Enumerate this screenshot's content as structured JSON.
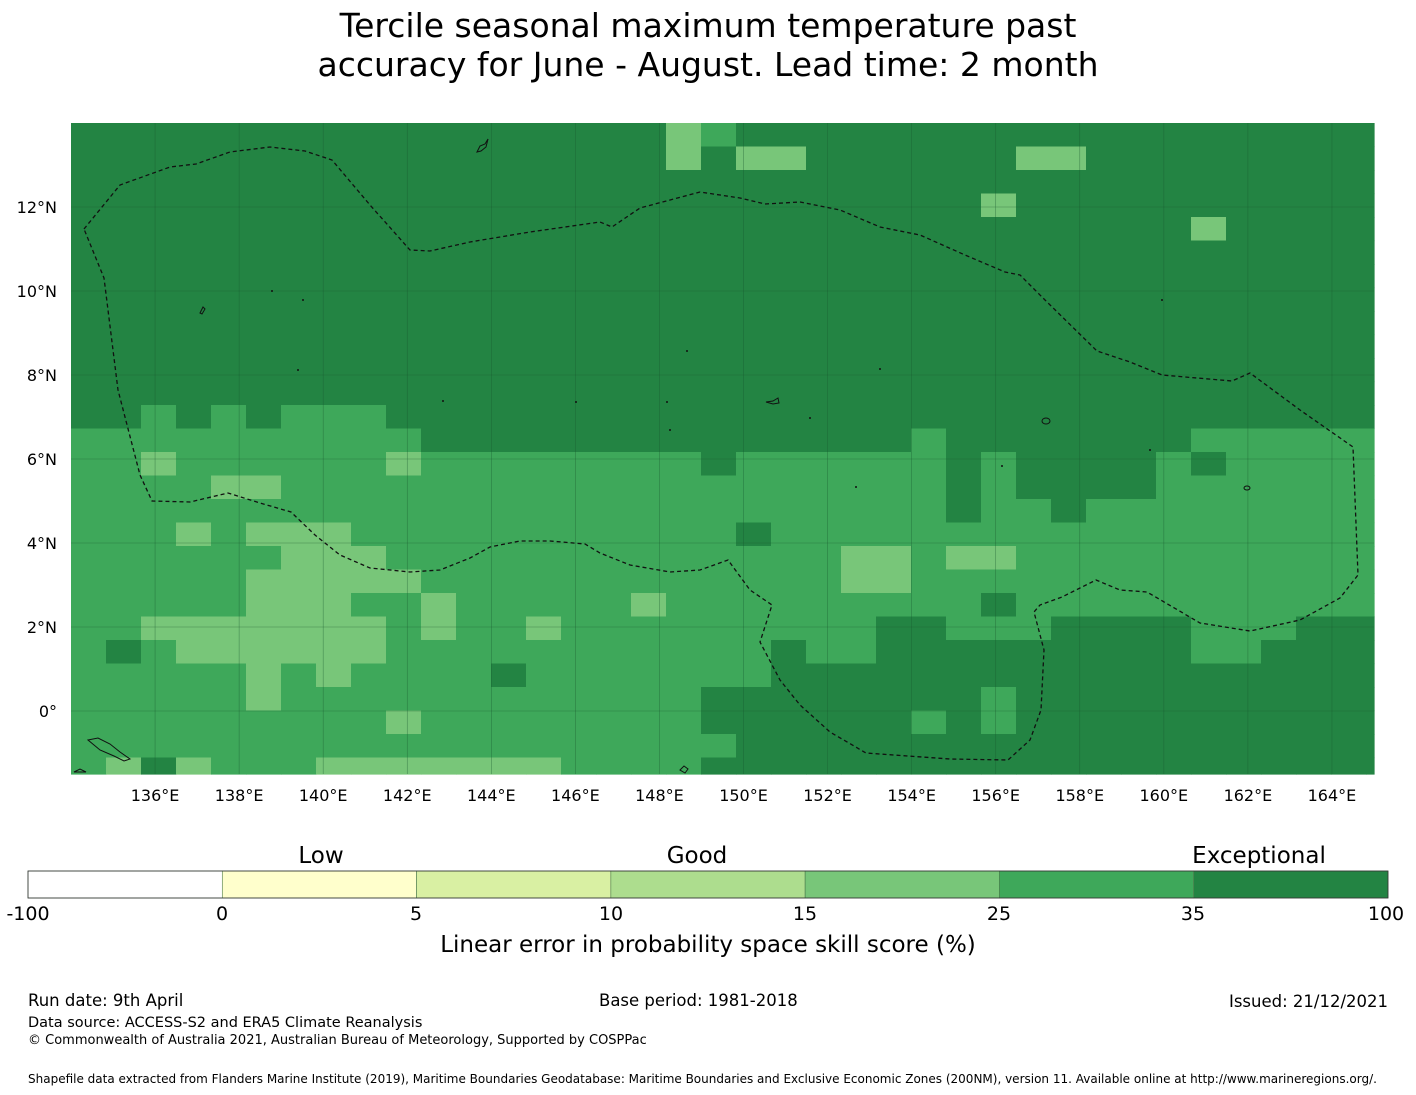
{
  "title": {
    "line1": "Tercile seasonal maximum temperature past",
    "line2": "accuracy for June - August. Lead time: 2 month"
  },
  "map": {
    "lat_labels": [
      "12°N",
      "10°N",
      "8°N",
      "6°N",
      "4°N",
      "2°N",
      "0°"
    ],
    "lon_labels": [
      "136°E",
      "138°E",
      "140°E",
      "142°E",
      "144°E",
      "146°E",
      "148°E",
      "150°E",
      "152°E",
      "154°E",
      "156°E",
      "158°E",
      "160°E",
      "162°E",
      "164°E"
    ],
    "extent": {
      "lon_min": 134.0,
      "lon_max": 165.0,
      "lat_min": -1.5,
      "lat_max": 14.0
    },
    "grid_spacing_degrees": 2,
    "cell_size_degrees": 0.8333,
    "colors": {
      "exceptional_35_100": "#238443",
      "good_25_35": "#3ea85a",
      "good_15_25": "#78c679",
      "good_10_15": "#addd8e",
      "low_5_10": "#d9f0a3",
      "low_0_5": "#ffffcc",
      "none_-100_0": "#ffffff"
    }
  },
  "colorbar": {
    "categories": [
      "Low",
      "Good",
      "Exceptional"
    ],
    "ticks": [
      "-100",
      "0",
      "5",
      "10",
      "15",
      "25",
      "35",
      "100"
    ],
    "colors": [
      "#ffffff",
      "#ffffcc",
      "#d9f0a3",
      "#addd8e",
      "#78c679",
      "#3ea85a",
      "#238443"
    ],
    "label": "Linear error in probability space skill score (%)"
  },
  "footer": {
    "run_date": "Run date: 9th April",
    "base_period": "Base period: 1981-2018",
    "issued": "Issued: 21/12/2021",
    "data_source": "Data source: ACCESS-S2 and ERA5 Climate Reanalysis",
    "copyright": "© Commonwealth of Australia 2021, Australian Bureau of Meteorology, Supported by COSPPac",
    "shapefile": "Shapefile data extracted from Flanders Marine Institute (2019), Maritime Boundaries Geodatabase: Maritime Boundaries and Exclusive Economic Zones (200NM), version 11. Available online at http://www.marineregions.org/."
  }
}
